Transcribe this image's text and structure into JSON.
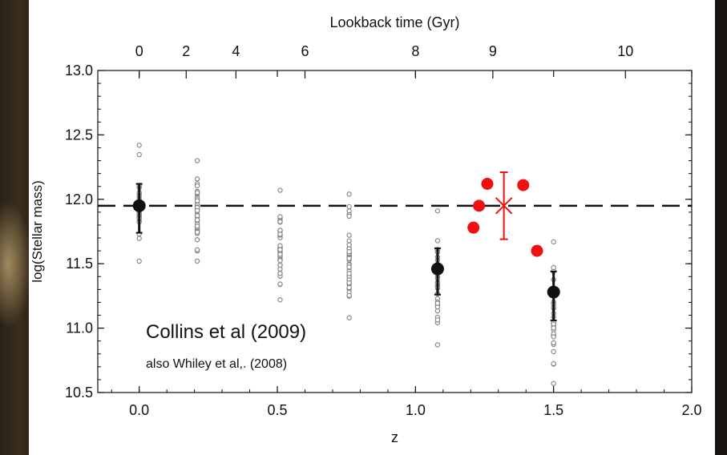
{
  "chart_data": {
    "type": "scatter",
    "xlabel": "z",
    "ylabel": "log(Stellar mass)",
    "top_axis_label": "Lookback time (Gyr)",
    "xlim": [
      -0.15,
      2.0
    ],
    "ylim": [
      10.5,
      13.0
    ],
    "x_ticks": [
      "0.0",
      "0.5",
      "1.0",
      "1.5",
      "2.0"
    ],
    "y_ticks": [
      "10.5",
      "11.0",
      "11.5",
      "12.0",
      "12.5",
      "13.0"
    ],
    "top_ticks": [
      {
        "label": "0",
        "z": 0.0
      },
      {
        "label": "2",
        "z": 0.17
      },
      {
        "label": "4",
        "z": 0.35
      },
      {
        "label": "6",
        "z": 0.6
      },
      {
        "label": "8",
        "z": 1.0
      },
      {
        "label": "9",
        "z": 1.28
      },
      {
        "label": "10",
        "z": 1.76
      }
    ],
    "reference_line": {
      "y": 11.95,
      "style": "dashed"
    },
    "simulation_columns": [
      {
        "z": 0.0,
        "min": 11.52,
        "max": 12.42,
        "center": 11.95,
        "n": 30
      },
      {
        "z": 0.21,
        "min": 11.52,
        "max": 12.3,
        "center": 11.9,
        "n": 40
      },
      {
        "z": 0.51,
        "min": 11.22,
        "max": 12.07,
        "center": 11.65,
        "n": 40
      },
      {
        "z": 0.76,
        "min": 11.08,
        "max": 12.04,
        "center": 11.6,
        "n": 40
      },
      {
        "z": 1.08,
        "min": 10.87,
        "max": 11.91,
        "center": 11.45,
        "n": 30
      },
      {
        "z": 1.5,
        "min": 10.57,
        "max": 11.67,
        "center": 11.25,
        "n": 30
      }
    ],
    "median_points": [
      {
        "z": 0.0,
        "y": 11.95,
        "lo": 11.74,
        "hi": 12.12
      },
      {
        "z": 1.08,
        "y": 11.46,
        "lo": 11.26,
        "hi": 11.62
      },
      {
        "z": 1.5,
        "y": 11.28,
        "lo": 11.06,
        "hi": 11.44
      }
    ],
    "observed_points": [
      {
        "z": 1.21,
        "y": 11.78
      },
      {
        "z": 1.23,
        "y": 11.95
      },
      {
        "z": 1.26,
        "y": 12.12
      },
      {
        "z": 1.39,
        "y": 12.11
      },
      {
        "z": 1.44,
        "y": 11.6
      }
    ],
    "observed_mean": {
      "z": 1.32,
      "y": 11.95,
      "lo": 11.69,
      "hi": 12.21
    },
    "colors": {
      "simulation": "#888888",
      "median": "#111111",
      "observed": "#ee1111"
    }
  },
  "annotations": {
    "main": "Collins et al (2009)",
    "sub": "also Whiley et al,. (2008)"
  }
}
